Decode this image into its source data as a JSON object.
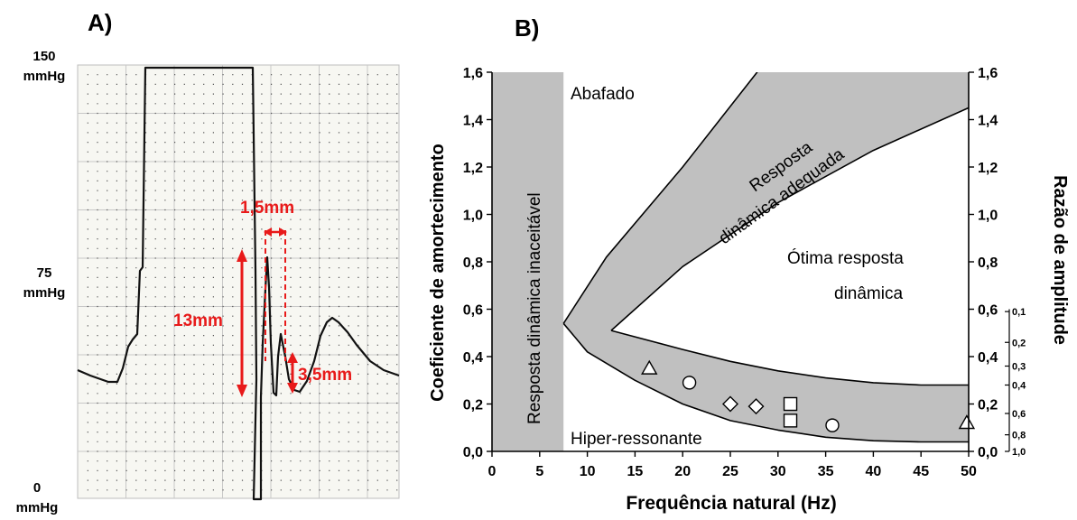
{
  "panels": {
    "a_label": "A)",
    "b_label": "B)"
  },
  "panel_a": {
    "pressure_labels": [
      {
        "value": "150",
        "unit": "mmHg"
      },
      {
        "value": "75",
        "unit": "mmHg"
      },
      {
        "value": "0",
        "unit": "mmHg"
      }
    ],
    "annotations": {
      "width_peak": "1,5mm",
      "height": "13mm",
      "second_peak": "3,5mm"
    },
    "annotation_color": "#e81a1a"
  },
  "chart_data": {
    "type": "scatter",
    "xlabel": "Frequência natural (Hz)",
    "ylabel": "Coeficiente de amortecimento",
    "y2label": "Razão de amplitude",
    "xlim": [
      0,
      50
    ],
    "ylim": [
      0,
      1.6
    ],
    "x_ticks": [
      "0",
      "5",
      "10",
      "15",
      "20",
      "25",
      "30",
      "35",
      "40",
      "45",
      "50"
    ],
    "y_ticks": [
      "0,0",
      "0,2",
      "0,4",
      "0,6",
      "0,8",
      "1,0",
      "1,2",
      "1,4",
      "1,6"
    ],
    "y2_ticks": [
      "0,0",
      "0,2",
      "0,4",
      "0,6",
      "0,8",
      "1,0",
      "1,2",
      "1,4",
      "1,6"
    ],
    "amplitude_ratio_ticks": [
      {
        "label": "0,1",
        "y": 0.59
      },
      {
        "label": "0,2",
        "y": 0.46
      },
      {
        "label": "0,3",
        "y": 0.36
      },
      {
        "label": "0,4",
        "y": 0.28
      },
      {
        "label": "0,6",
        "y": 0.16
      },
      {
        "label": "0,8",
        "y": 0.07
      },
      {
        "label": "1,0",
        "y": 0.0
      }
    ],
    "regions": {
      "unacceptable": "Resposta dinâmica inaceitável",
      "damped": "Abafado",
      "adequate_line1": "Resposta",
      "adequate_line2": "dinâmica adequada",
      "optimal_line1": "Ótima resposta",
      "optimal_line2": "dinâmica",
      "hyper": "Hiper-ressonante"
    },
    "unacceptable_band": [
      0,
      7.5
    ],
    "boundaries": {
      "outer_upper": [
        [
          7.5,
          0.54
        ],
        [
          12,
          0.82
        ],
        [
          20,
          1.2
        ],
        [
          28,
          1.61
        ]
      ],
      "outer_lower": [
        [
          7.5,
          0.54
        ],
        [
          10,
          0.42
        ],
        [
          15,
          0.3
        ],
        [
          20,
          0.2
        ],
        [
          25,
          0.13
        ],
        [
          30,
          0.09
        ],
        [
          35,
          0.06
        ],
        [
          40,
          0.045
        ],
        [
          45,
          0.04
        ],
        [
          50,
          0.04
        ]
      ],
      "inner_upper": [
        [
          12.5,
          0.51
        ],
        [
          20,
          0.78
        ],
        [
          30,
          1.05
        ],
        [
          40,
          1.27
        ],
        [
          50,
          1.45
        ]
      ],
      "inner_lower": [
        [
          12.5,
          0.51
        ],
        [
          20,
          0.43
        ],
        [
          25,
          0.38
        ],
        [
          30,
          0.34
        ],
        [
          35,
          0.31
        ],
        [
          40,
          0.29
        ],
        [
          45,
          0.28
        ],
        [
          50,
          0.28
        ]
      ]
    },
    "points": [
      {
        "marker": "triangle",
        "x": 16.5,
        "y": 0.35
      },
      {
        "marker": "circle",
        "x": 20.7,
        "y": 0.29
      },
      {
        "marker": "diamond",
        "x": 25.0,
        "y": 0.2
      },
      {
        "marker": "diamond",
        "x": 27.7,
        "y": 0.19
      },
      {
        "marker": "square",
        "x": 31.3,
        "y": 0.2
      },
      {
        "marker": "square",
        "x": 31.3,
        "y": 0.13
      },
      {
        "marker": "circle",
        "x": 35.7,
        "y": 0.11
      },
      {
        "marker": "triangle",
        "x": 49.8,
        "y": 0.12
      }
    ],
    "colors": {
      "shade": "#c0c0c0",
      "line": "#000000"
    }
  }
}
